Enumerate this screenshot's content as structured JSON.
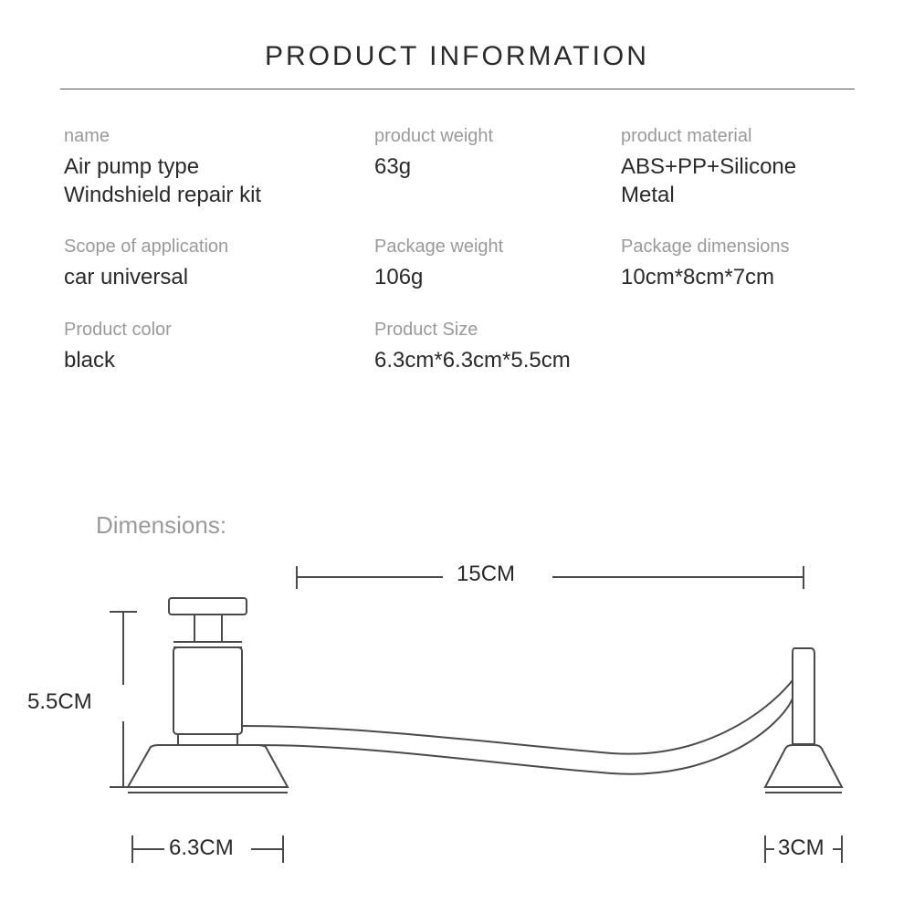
{
  "title": "PRODUCT INFORMATION",
  "specs": [
    {
      "label": "name",
      "value": "Air pump type\nWindshield repair kit"
    },
    {
      "label": "product weight",
      "value": "63g"
    },
    {
      "label": "product material",
      "value": "ABS+PP+Silicone\nMetal"
    },
    {
      "label": "Scope of application",
      "value": "car universal"
    },
    {
      "label": "Package weight",
      "value": "106g"
    },
    {
      "label": "Package dimensions",
      "value": "10cm*8cm*7cm"
    },
    {
      "label": "Product color",
      "value": "black"
    },
    {
      "label": "Product Size",
      "value": "6.3cm*6.3cm*5.5cm"
    }
  ],
  "dimensions_heading": "Dimensions:",
  "dimension_labels": {
    "top": "15CM",
    "left": "5.5CM",
    "bottom_left": "6.3CM",
    "bottom_right": "3CM"
  },
  "style": {
    "background_color": "#ffffff",
    "title_color": "#2a2a2a",
    "label_color": "#9a9a9a",
    "value_color": "#2a2a2a",
    "line_color": "#555555",
    "diagram_stroke": "#4a4a4a",
    "diagram_stroke_width": 2,
    "title_fontsize": 30,
    "label_fontsize": 20,
    "value_fontsize": 24,
    "dimension_fontsize": 24
  }
}
